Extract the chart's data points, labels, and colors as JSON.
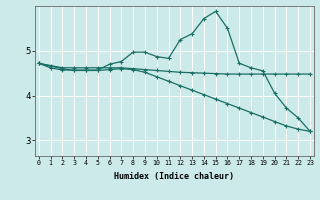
{
  "xlabel": "Humidex (Indice chaleur)",
  "bg_color": "#cceaea",
  "line_color": "#1a6e64",
  "grid_color": "#ffffff",
  "x_ticks": [
    0,
    1,
    2,
    3,
    4,
    5,
    6,
    7,
    8,
    9,
    10,
    11,
    12,
    13,
    14,
    15,
    16,
    17,
    18,
    19,
    20,
    21,
    22,
    23
  ],
  "y_ticks": [
    3,
    4,
    5
  ],
  "ylim": [
    2.65,
    6.0
  ],
  "xlim": [
    -0.3,
    23.3
  ],
  "series1_x": [
    0,
    1,
    2,
    3,
    4,
    5,
    6,
    7,
    8,
    9,
    10,
    11,
    12,
    13,
    14,
    15,
    16,
    17,
    18,
    19,
    20,
    21,
    22,
    23
  ],
  "series1_y": [
    4.72,
    4.62,
    4.57,
    4.57,
    4.57,
    4.57,
    4.7,
    4.76,
    4.97,
    4.97,
    4.87,
    4.83,
    5.25,
    5.38,
    5.72,
    5.88,
    5.5,
    4.72,
    4.62,
    4.55,
    4.05,
    3.72,
    3.5,
    3.2
  ],
  "series2_x": [
    0,
    1,
    2,
    3,
    4,
    5,
    6,
    7,
    8,
    9,
    10,
    11,
    12,
    13,
    14,
    15,
    16,
    17,
    18,
    19,
    20,
    21,
    22,
    23
  ],
  "series2_y": [
    4.72,
    4.67,
    4.62,
    4.62,
    4.62,
    4.62,
    4.62,
    4.62,
    4.6,
    4.58,
    4.56,
    4.54,
    4.52,
    4.51,
    4.5,
    4.49,
    4.48,
    4.48,
    4.48,
    4.48,
    4.48,
    4.48,
    4.48,
    4.48
  ],
  "series3_x": [
    0,
    2,
    3,
    4,
    5,
    6,
    7,
    8,
    9,
    10,
    11,
    12,
    13,
    14,
    15,
    16,
    17,
    18,
    19,
    20,
    21,
    22,
    23
  ],
  "series3_y": [
    4.72,
    4.6,
    4.56,
    4.56,
    4.56,
    4.58,
    4.6,
    4.58,
    4.52,
    4.42,
    4.32,
    4.22,
    4.12,
    4.02,
    3.92,
    3.82,
    3.72,
    3.62,
    3.52,
    3.42,
    3.32,
    3.25,
    3.2
  ]
}
